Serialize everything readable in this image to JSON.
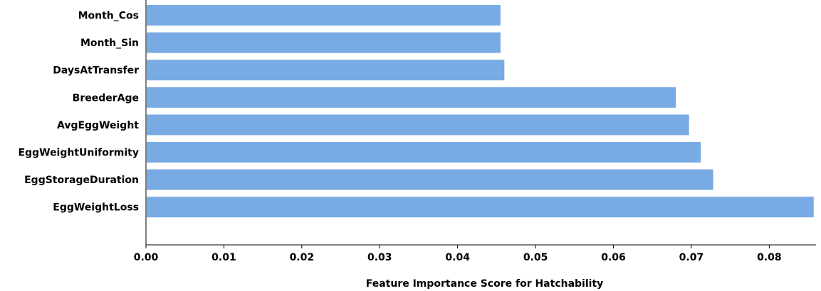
{
  "chart_data": {
    "type": "bar",
    "orientation": "horizontal",
    "categories": [
      "Month_Cos",
      "Month_Sin",
      "DaysAtTransfer",
      "BreederAge",
      "AvgEggWeight",
      "EggWeightUniformity",
      "EggStorageDuration",
      "EggWeightLoss"
    ],
    "values": [
      0.0455,
      0.0455,
      0.046,
      0.068,
      0.0697,
      0.0712,
      0.0728,
      0.0857
    ],
    "xlabel": "Feature Importance Score for Hatchability",
    "ylabel": "",
    "xlim": [
      0.0,
      0.086
    ],
    "xticks": [
      0.0,
      0.01,
      0.02,
      0.03,
      0.04,
      0.05,
      0.06,
      0.07,
      0.08
    ],
    "xtick_labels": [
      "0.00",
      "0.01",
      "0.02",
      "0.03",
      "0.04",
      "0.05",
      "0.06",
      "0.07",
      "0.08"
    ],
    "bar_color": "#78aae3",
    "grid": false,
    "legend": "none"
  }
}
